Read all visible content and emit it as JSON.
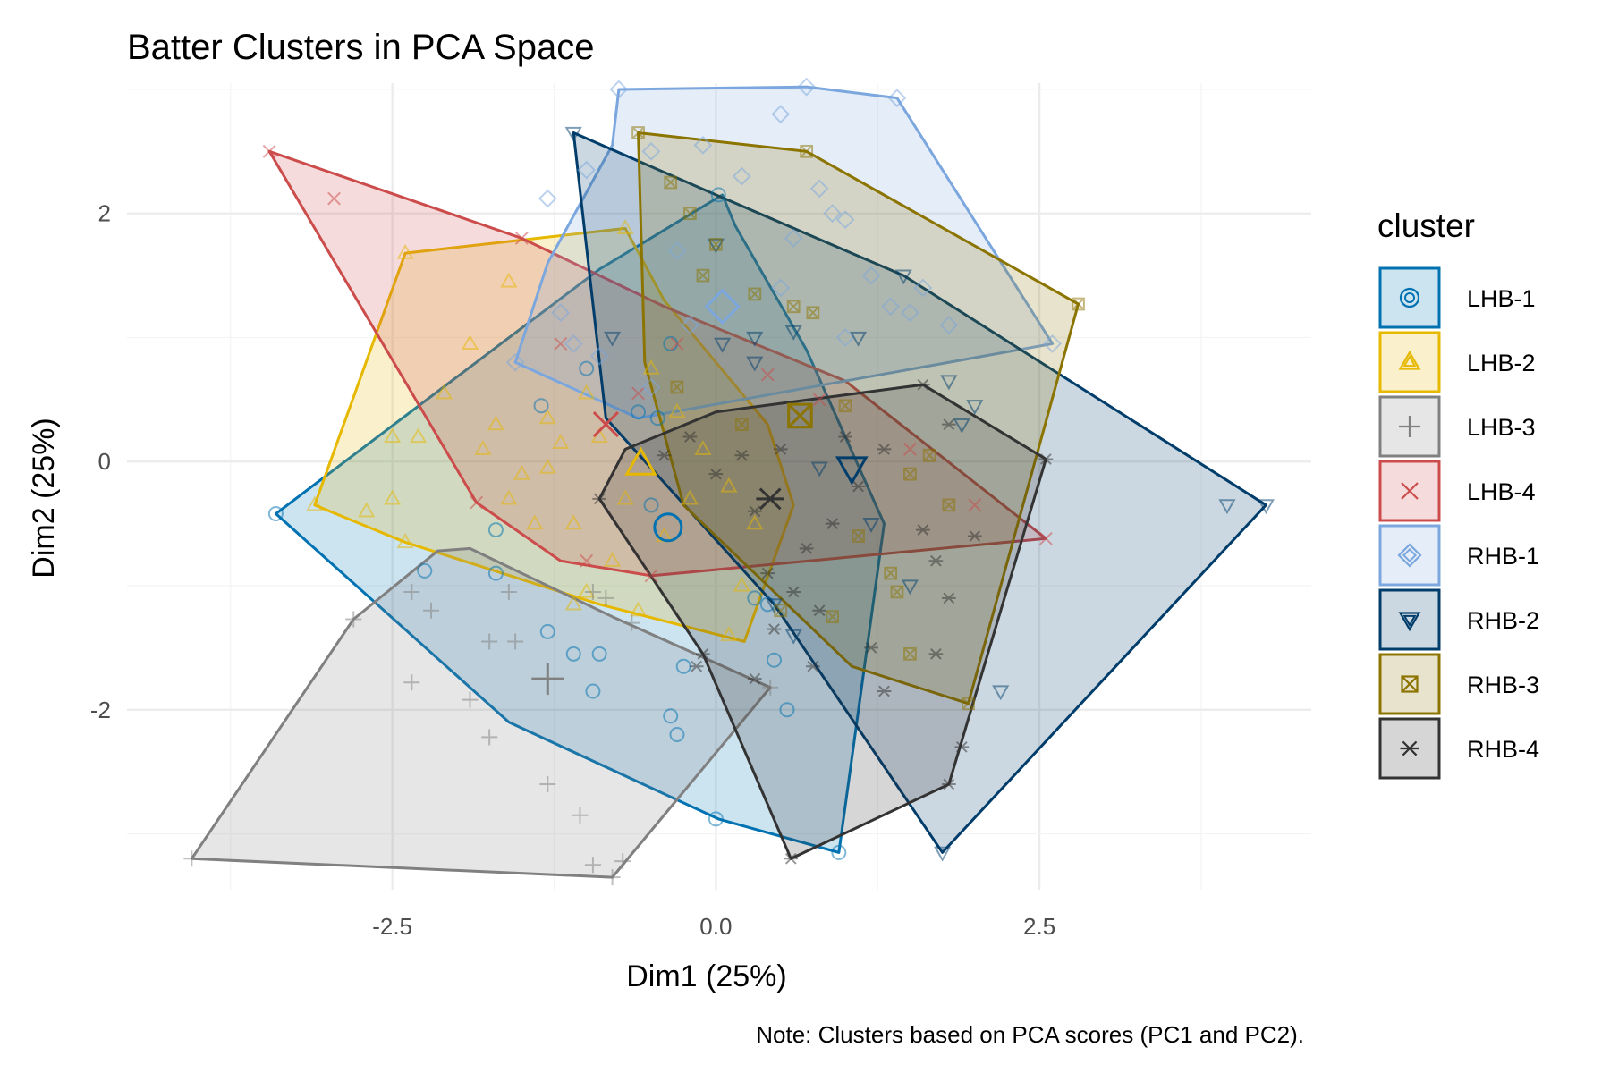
{
  "chart_data": {
    "type": "scatter",
    "title": "Batter Clusters in PCA Space",
    "xlabel": "Dim1 (25%)",
    "ylabel": "Dim2 (25%)",
    "caption": "Note: Clusters based on PCA scores (PC1 and PC2).",
    "xlim": [
      -4.55,
      4.6
    ],
    "ylim": [
      -3.45,
      3.05
    ],
    "x_ticks": [
      -2.5,
      0.0,
      2.5
    ],
    "x_tick_labels": [
      "-2.5",
      "0.0",
      "2.5"
    ],
    "y_ticks": [
      -2,
      0,
      2
    ],
    "y_tick_labels": [
      "-2",
      "0",
      "2"
    ],
    "grid": true,
    "legend": {
      "title": "cluster",
      "position": "right"
    },
    "series": [
      {
        "name": "LHB-1",
        "color": "#0072B2",
        "marker": "circle",
        "centroid": [
          -0.37,
          -0.53
        ],
        "hull": [
          [
            -3.4,
            -0.42
          ],
          [
            -0.9,
            1.55
          ],
          [
            0.05,
            2.15
          ],
          [
            0.15,
            1.9
          ],
          [
            0.7,
            0.9
          ],
          [
            1.3,
            -0.5
          ],
          [
            0.95,
            -3.15
          ],
          [
            0.02,
            -2.88
          ],
          [
            -1.6,
            -2.1
          ]
        ],
        "points": [
          [
            -3.4,
            -0.42
          ],
          [
            0.02,
            2.15
          ],
          [
            0.0,
            -2.88
          ],
          [
            0.95,
            -3.15
          ],
          [
            -2.25,
            -0.88
          ],
          [
            -1.7,
            -0.9
          ],
          [
            -1.3,
            -1.37
          ],
          [
            -1.1,
            -1.55
          ],
          [
            -0.9,
            -1.55
          ],
          [
            -0.95,
            -1.85
          ],
          [
            -0.25,
            -1.65
          ],
          [
            -0.35,
            -2.05
          ],
          [
            -0.3,
            -2.2
          ],
          [
            0.55,
            -2.0
          ],
          [
            0.45,
            -1.6
          ],
          [
            -1.35,
            0.45
          ],
          [
            -1.0,
            0.75
          ],
          [
            -0.35,
            0.95
          ],
          [
            -0.6,
            0.4
          ],
          [
            -1.7,
            -0.55
          ],
          [
            -0.5,
            -0.35
          ],
          [
            0.3,
            -1.1
          ],
          [
            0.4,
            -1.15
          ],
          [
            -0.45,
            0.35
          ]
        ]
      },
      {
        "name": "LHB-2",
        "color": "#E6B800",
        "marker": "triangle",
        "centroid": [
          -0.58,
          -0.02
        ],
        "hull": [
          [
            -3.1,
            -0.35
          ],
          [
            -2.4,
            1.68
          ],
          [
            -0.7,
            1.88
          ],
          [
            -0.4,
            1.3
          ],
          [
            0.4,
            0.3
          ],
          [
            0.6,
            -0.35
          ],
          [
            0.22,
            -1.45
          ],
          [
            -0.9,
            -1.15
          ],
          [
            -2.4,
            -0.65
          ]
        ],
        "points": [
          [
            -2.4,
            1.68
          ],
          [
            -0.7,
            1.88
          ],
          [
            -3.1,
            -0.35
          ],
          [
            -1.6,
            1.45
          ],
          [
            -1.9,
            0.95
          ],
          [
            -2.1,
            0.55
          ],
          [
            -2.5,
            0.2
          ],
          [
            -2.3,
            0.2
          ],
          [
            -2.7,
            -0.4
          ],
          [
            -2.5,
            -0.3
          ],
          [
            -2.4,
            -0.65
          ],
          [
            -1.3,
            0.35
          ],
          [
            -1.0,
            0.55
          ],
          [
            -1.2,
            0.15
          ],
          [
            -1.5,
            -0.1
          ],
          [
            -1.6,
            -0.3
          ],
          [
            -1.1,
            -0.5
          ],
          [
            -1.4,
            -0.5
          ],
          [
            -1.1,
            -1.15
          ],
          [
            -1.0,
            -1.05
          ],
          [
            -0.5,
            0.75
          ],
          [
            -0.3,
            0.4
          ],
          [
            -0.1,
            0.1
          ],
          [
            0.1,
            -0.2
          ],
          [
            0.3,
            -0.5
          ],
          [
            0.2,
            -1.0
          ],
          [
            0.1,
            -1.4
          ],
          [
            -0.6,
            -1.2
          ],
          [
            -0.8,
            -0.8
          ],
          [
            -0.7,
            -0.3
          ],
          [
            -0.4,
            -0.6
          ],
          [
            -1.7,
            0.3
          ],
          [
            -1.8,
            0.1
          ],
          [
            -1.3,
            -0.05
          ],
          [
            -0.9,
            0.2
          ],
          [
            -0.2,
            -0.3
          ]
        ]
      },
      {
        "name": "LHB-3",
        "color": "#808080",
        "marker": "plus",
        "centroid": [
          -1.3,
          -1.75
        ],
        "hull": [
          [
            -4.05,
            -3.2
          ],
          [
            -0.8,
            -3.35
          ],
          [
            0.42,
            -1.82
          ],
          [
            -0.8,
            -1.25
          ],
          [
            -1.9,
            -0.7
          ],
          [
            -2.15,
            -0.72
          ],
          [
            -2.8,
            -1.27
          ]
        ],
        "points": [
          [
            -4.05,
            -3.2
          ],
          [
            -0.8,
            -3.35
          ],
          [
            -0.72,
            -3.22
          ],
          [
            -0.95,
            -3.25
          ],
          [
            -2.8,
            -1.27
          ],
          [
            -2.35,
            -1.78
          ],
          [
            -1.9,
            -1.92
          ],
          [
            -1.75,
            -2.22
          ],
          [
            -1.3,
            -2.6
          ],
          [
            -1.05,
            -2.85
          ],
          [
            -1.75,
            -1.45
          ],
          [
            -1.55,
            -1.45
          ],
          [
            -1.6,
            -1.05
          ],
          [
            -2.2,
            -1.2
          ],
          [
            -2.35,
            -1.05
          ],
          [
            -0.95,
            -1.05
          ],
          [
            -0.85,
            -1.1
          ],
          [
            -0.65,
            -1.3
          ],
          [
            0.42,
            -1.82
          ]
        ]
      },
      {
        "name": "LHB-4",
        "color": "#CC4C4C",
        "marker": "cross",
        "centroid": [
          -0.85,
          0.3
        ],
        "hull": [
          [
            -3.45,
            2.5
          ],
          [
            -1.5,
            1.8
          ],
          [
            -0.4,
            1.25
          ],
          [
            1.0,
            0.65
          ],
          [
            2.55,
            -0.62
          ],
          [
            -0.5,
            -0.92
          ],
          [
            -1.2,
            -0.8
          ],
          [
            -1.85,
            -0.33
          ]
        ],
        "points": [
          [
            -3.45,
            2.5
          ],
          [
            -2.95,
            2.12
          ],
          [
            -1.5,
            1.8
          ],
          [
            2.55,
            -0.62
          ],
          [
            -1.85,
            -0.33
          ],
          [
            -0.85,
            0.3
          ],
          [
            -1.0,
            -0.8
          ],
          [
            -0.5,
            -0.92
          ],
          [
            -0.3,
            0.95
          ],
          [
            0.4,
            0.7
          ],
          [
            0.8,
            0.5
          ],
          [
            1.5,
            0.1
          ],
          [
            2.0,
            -0.35
          ],
          [
            -1.2,
            0.95
          ],
          [
            -0.6,
            0.55
          ]
        ]
      },
      {
        "name": "RHB-1",
        "color": "#7BA7DE",
        "marker": "diamond",
        "centroid": [
          0.05,
          1.25
        ],
        "hull": [
          [
            -1.55,
            0.8
          ],
          [
            -1.3,
            1.6
          ],
          [
            -0.8,
            2.55
          ],
          [
            -0.75,
            3.0
          ],
          [
            0.7,
            3.02
          ],
          [
            1.4,
            2.93
          ],
          [
            2.6,
            0.95
          ],
          [
            -0.6,
            0.35
          ]
        ],
        "points": [
          [
            -0.75,
            3.0
          ],
          [
            0.7,
            3.02
          ],
          [
            1.4,
            2.93
          ],
          [
            2.6,
            0.95
          ],
          [
            -1.55,
            0.8
          ],
          [
            -1.3,
            2.12
          ],
          [
            -1.0,
            2.35
          ],
          [
            -0.5,
            2.5
          ],
          [
            -0.1,
            2.55
          ],
          [
            0.5,
            2.8
          ],
          [
            0.2,
            2.3
          ],
          [
            0.6,
            1.8
          ],
          [
            0.8,
            2.2
          ],
          [
            1.0,
            1.95
          ],
          [
            1.2,
            1.5
          ],
          [
            1.35,
            1.25
          ],
          [
            1.5,
            1.2
          ],
          [
            1.6,
            1.4
          ],
          [
            1.8,
            1.1
          ],
          [
            1.0,
            1.0
          ],
          [
            0.5,
            1.4
          ],
          [
            -0.2,
            1.1
          ],
          [
            -0.5,
            0.6
          ],
          [
            -1.2,
            1.2
          ],
          [
            -1.1,
            0.95
          ],
          [
            -0.9,
            0.85
          ],
          [
            -0.3,
            1.7
          ],
          [
            0.9,
            2.0
          ]
        ]
      },
      {
        "name": "RHB-2",
        "color": "#003D6B",
        "marker": "triangle-down",
        "centroid": [
          1.05,
          -0.05
        ],
        "hull": [
          [
            -1.1,
            2.65
          ],
          [
            0.0,
            2.15
          ],
          [
            1.45,
            1.5
          ],
          [
            4.25,
            -0.35
          ],
          [
            1.75,
            -3.15
          ],
          [
            0.45,
            -1.15
          ],
          [
            -0.85,
            0.35
          ]
        ],
        "points": [
          [
            -1.1,
            2.65
          ],
          [
            4.25,
            -0.35
          ],
          [
            1.75,
            -3.15
          ],
          [
            3.95,
            -0.35
          ],
          [
            1.45,
            1.5
          ],
          [
            1.8,
            0.65
          ],
          [
            2.0,
            0.45
          ],
          [
            1.9,
            0.3
          ],
          [
            2.2,
            -1.85
          ],
          [
            1.5,
            -1.0
          ],
          [
            0.6,
            -1.4
          ],
          [
            0.45,
            -1.15
          ],
          [
            0.3,
            1.0
          ],
          [
            0.6,
            1.05
          ],
          [
            0.05,
            0.95
          ],
          [
            0.0,
            1.75
          ],
          [
            -0.8,
            1.0
          ],
          [
            0.3,
            0.8
          ],
          [
            1.1,
            1.0
          ],
          [
            0.8,
            -0.05
          ],
          [
            1.2,
            -0.5
          ]
        ]
      },
      {
        "name": "RHB-3",
        "color": "#8C7400",
        "marker": "square-x",
        "centroid": [
          0.65,
          0.37
        ],
        "hull": [
          [
            -0.6,
            2.65
          ],
          [
            0.7,
            2.5
          ],
          [
            2.8,
            1.27
          ],
          [
            1.95,
            -1.95
          ],
          [
            1.05,
            -1.65
          ],
          [
            -0.25,
            -0.35
          ],
          [
            -0.55,
            0.8
          ]
        ],
        "points": [
          [
            -0.6,
            2.65
          ],
          [
            0.7,
            2.5
          ],
          [
            2.8,
            1.27
          ],
          [
            1.95,
            -1.95
          ],
          [
            -0.35,
            2.25
          ],
          [
            -0.2,
            2.0
          ],
          [
            0.0,
            1.75
          ],
          [
            0.3,
            1.35
          ],
          [
            0.6,
            1.25
          ],
          [
            0.75,
            1.2
          ],
          [
            -0.1,
            1.5
          ],
          [
            1.0,
            0.45
          ],
          [
            1.5,
            -0.1
          ],
          [
            1.8,
            -0.35
          ],
          [
            1.35,
            -0.9
          ],
          [
            1.4,
            -1.05
          ],
          [
            1.1,
            -0.6
          ],
          [
            0.9,
            -1.25
          ],
          [
            0.5,
            -1.2
          ],
          [
            1.5,
            -1.55
          ],
          [
            0.2,
            0.3
          ],
          [
            -0.3,
            0.6
          ],
          [
            1.65,
            0.05
          ]
        ]
      },
      {
        "name": "RHB-4",
        "color": "#333333",
        "marker": "asterisk",
        "centroid": [
          0.42,
          -0.3
        ],
        "hull": [
          [
            -0.7,
            0.1
          ],
          [
            0.0,
            0.4
          ],
          [
            1.6,
            0.62
          ],
          [
            2.55,
            0.02
          ],
          [
            1.8,
            -2.6
          ],
          [
            0.58,
            -3.2
          ],
          [
            -0.1,
            -1.55
          ],
          [
            -0.9,
            -0.3
          ]
        ],
        "points": [
          [
            0.58,
            -3.2
          ],
          [
            1.8,
            -2.6
          ],
          [
            2.55,
            0.02
          ],
          [
            1.6,
            0.62
          ],
          [
            -0.9,
            -0.3
          ],
          [
            -0.1,
            -1.55
          ],
          [
            1.7,
            -1.55
          ],
          [
            1.9,
            -2.3
          ],
          [
            1.3,
            -1.85
          ],
          [
            1.2,
            -1.5
          ],
          [
            0.6,
            -1.05
          ],
          [
            0.8,
            -1.2
          ],
          [
            0.4,
            -0.9
          ],
          [
            0.9,
            -0.5
          ],
          [
            1.1,
            -0.2
          ],
          [
            1.3,
            0.1
          ],
          [
            1.6,
            -0.55
          ],
          [
            1.7,
            -0.8
          ],
          [
            1.8,
            -1.1
          ],
          [
            1.8,
            0.3
          ],
          [
            2.0,
            -0.6
          ],
          [
            -0.15,
            -1.65
          ],
          [
            0.3,
            -1.75
          ],
          [
            0.45,
            -1.35
          ],
          [
            0.75,
            -1.65
          ],
          [
            0.2,
            0.05
          ],
          [
            -0.4,
            0.05
          ],
          [
            0.0,
            -0.1
          ],
          [
            0.5,
            0.1
          ],
          [
            1.0,
            0.2
          ],
          [
            0.3,
            -0.4
          ],
          [
            -0.2,
            0.2
          ],
          [
            0.7,
            -0.7
          ]
        ]
      }
    ]
  }
}
